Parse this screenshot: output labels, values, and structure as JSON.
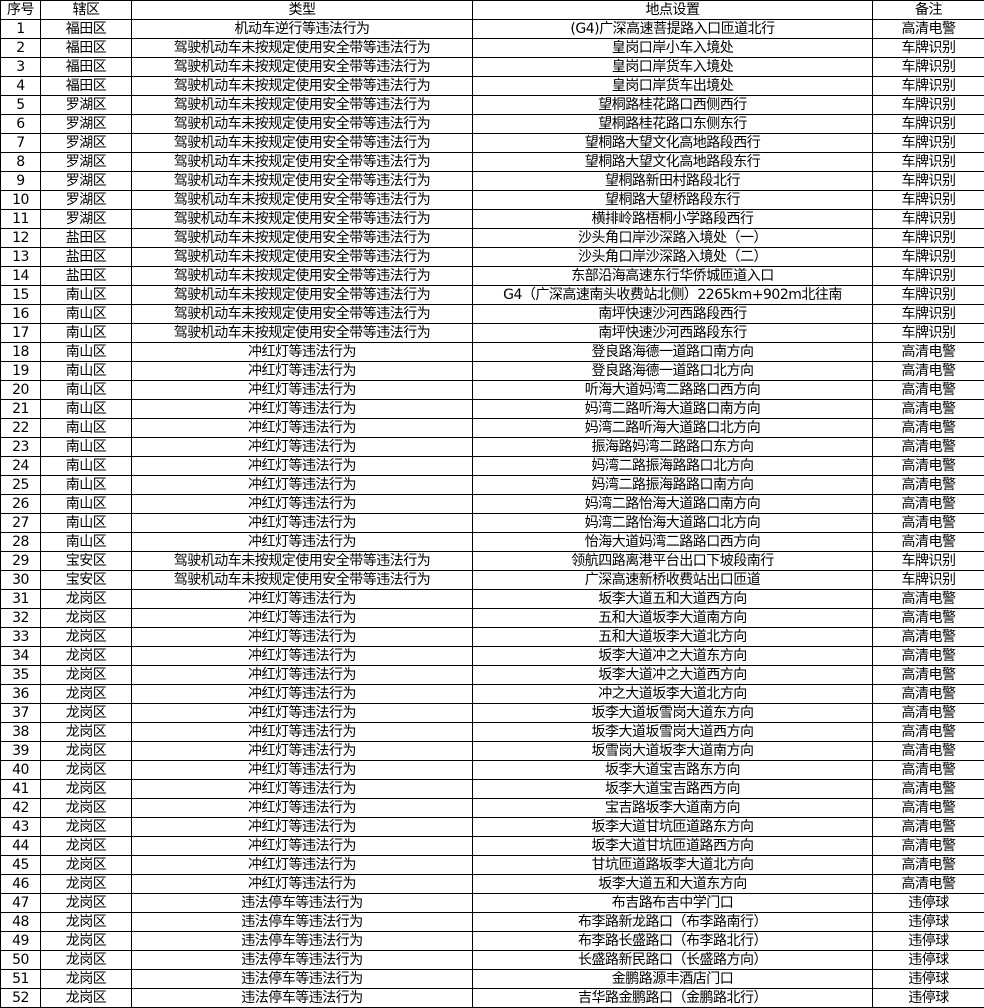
{
  "headers": [
    "序号",
    "辖区",
    "类型",
    "地点设置",
    "备注"
  ],
  "rows": [
    [
      "1",
      "福田区",
      "机动车逆行等违法行为",
      "(G4)广深高速菩提路入口匝道北行",
      "高清电警"
    ],
    [
      "2",
      "福田区",
      "驾驶机动车未按规定使用安全带等违法行为",
      "皇岗口岸小车入境处",
      "车牌识别"
    ],
    [
      "3",
      "福田区",
      "驾驶机动车未按规定使用安全带等违法行为",
      "皇岗口岸货车入境处",
      "车牌识别"
    ],
    [
      "4",
      "福田区",
      "驾驶机动车未按规定使用安全带等违法行为",
      "皇岗口岸货车出境处",
      "车牌识别"
    ],
    [
      "5",
      "罗湖区",
      "驾驶机动车未按规定使用安全带等违法行为",
      "望桐路桂花路口西侧西行",
      "车牌识别"
    ],
    [
      "6",
      "罗湖区",
      "驾驶机动车未按规定使用安全带等违法行为",
      "望桐路桂花路口东侧东行",
      "车牌识别"
    ],
    [
      "7",
      "罗湖区",
      "驾驶机动车未按规定使用安全带等违法行为",
      "望桐路大望文化高地路段西行",
      "车牌识别"
    ],
    [
      "8",
      "罗湖区",
      "驾驶机动车未按规定使用安全带等违法行为",
      "望桐路大望文化高地路段东行",
      "车牌识别"
    ],
    [
      "9",
      "罗湖区",
      "驾驶机动车未按规定使用安全带等违法行为",
      "望桐路新田村路段北行",
      "车牌识别"
    ],
    [
      "10",
      "罗湖区",
      "驾驶机动车未按规定使用安全带等违法行为",
      "望桐路大望桥路段东行",
      "车牌识别"
    ],
    [
      "11",
      "罗湖区",
      "驾驶机动车未按规定使用安全带等违法行为",
      "横排岭路梧桐小学路段西行",
      "车牌识别"
    ],
    [
      "12",
      "盐田区",
      "驾驶机动车未按规定使用安全带等违法行为",
      "沙头角口岸沙深路入境处（一）",
      "车牌识别"
    ],
    [
      "13",
      "盐田区",
      "驾驶机动车未按规定使用安全带等违法行为",
      "沙头角口岸沙深路入境处（二）",
      "车牌识别"
    ],
    [
      "14",
      "盐田区",
      "驾驶机动车未按规定使用安全带等违法行为",
      "东部沿海高速东行华侨城匝道入口",
      "车牌识别"
    ],
    [
      "15",
      "南山区",
      "驾驶机动车未按规定使用安全带等违法行为",
      "G4（广深高速南头收费站北侧）2265km+902m北往南",
      "车牌识别"
    ],
    [
      "16",
      "南山区",
      "驾驶机动车未按规定使用安全带等违法行为",
      "南坪快速沙河西路段西行",
      "车牌识别"
    ],
    [
      "17",
      "南山区",
      "驾驶机动车未按规定使用安全带等违法行为",
      "南坪快速沙河西路段东行",
      "车牌识别"
    ],
    [
      "18",
      "南山区",
      "冲红灯等违法行为",
      "登良路海德一道路口南方向",
      "高清电警"
    ],
    [
      "19",
      "南山区",
      "冲红灯等违法行为",
      "登良路海德一道路口北方向",
      "高清电警"
    ],
    [
      "20",
      "南山区",
      "冲红灯等违法行为",
      "听海大道妈湾二路路口西方向",
      "高清电警"
    ],
    [
      "21",
      "南山区",
      "冲红灯等违法行为",
      "妈湾二路听海大道路口南方向",
      "高清电警"
    ],
    [
      "22",
      "南山区",
      "冲红灯等违法行为",
      "妈湾二路听海大道路口北方向",
      "高清电警"
    ],
    [
      "23",
      "南山区",
      "冲红灯等违法行为",
      "振海路妈湾二路路口东方向",
      "高清电警"
    ],
    [
      "24",
      "南山区",
      "冲红灯等违法行为",
      "妈湾二路振海路路口北方向",
      "高清电警"
    ],
    [
      "25",
      "南山区",
      "冲红灯等违法行为",
      "妈湾二路振海路路口南方向",
      "高清电警"
    ],
    [
      "26",
      "南山区",
      "冲红灯等违法行为",
      "妈湾二路怡海大道路口南方向",
      "高清电警"
    ],
    [
      "27",
      "南山区",
      "冲红灯等违法行为",
      "妈湾二路怡海大道路口北方向",
      "高清电警"
    ],
    [
      "28",
      "南山区",
      "冲红灯等违法行为",
      "怡海大道妈湾二路路口西方向",
      "高清电警"
    ],
    [
      "29",
      "宝安区",
      "驾驶机动车未按规定使用安全带等违法行为",
      "领航四路离港平台出口下坡段南行",
      "车牌识别"
    ],
    [
      "30",
      "宝安区",
      "驾驶机动车未按规定使用安全带等违法行为",
      "广深高速新桥收费站出口匝道",
      "车牌识别"
    ],
    [
      "31",
      "龙岗区",
      "冲红灯等违法行为",
      "坂李大道五和大道西方向",
      "高清电警"
    ],
    [
      "32",
      "龙岗区",
      "冲红灯等违法行为",
      "五和大道坂李大道南方向",
      "高清电警"
    ],
    [
      "33",
      "龙岗区",
      "冲红灯等违法行为",
      "五和大道坂李大道北方向",
      "高清电警"
    ],
    [
      "34",
      "龙岗区",
      "冲红灯等违法行为",
      "坂李大道冲之大道东方向",
      "高清电警"
    ],
    [
      "35",
      "龙岗区",
      "冲红灯等违法行为",
      "坂李大道冲之大道西方向",
      "高清电警"
    ],
    [
      "36",
      "龙岗区",
      "冲红灯等违法行为",
      "冲之大道坂李大道北方向",
      "高清电警"
    ],
    [
      "37",
      "龙岗区",
      "冲红灯等违法行为",
      "坂李大道坂雪岗大道东方向",
      "高清电警"
    ],
    [
      "38",
      "龙岗区",
      "冲红灯等违法行为",
      "坂李大道坂雪岗大道西方向",
      "高清电警"
    ],
    [
      "39",
      "龙岗区",
      "冲红灯等违法行为",
      "坂雪岗大道坂李大道南方向",
      "高清电警"
    ],
    [
      "40",
      "龙岗区",
      "冲红灯等违法行为",
      "坂李大道宝吉路东方向",
      "高清电警"
    ],
    [
      "41",
      "龙岗区",
      "冲红灯等违法行为",
      "坂李大道宝吉路西方向",
      "高清电警"
    ],
    [
      "42",
      "龙岗区",
      "冲红灯等违法行为",
      "宝吉路坂李大道南方向",
      "高清电警"
    ],
    [
      "43",
      "龙岗区",
      "冲红灯等违法行为",
      "坂李大道甘坑匝道路东方向",
      "高清电警"
    ],
    [
      "44",
      "龙岗区",
      "冲红灯等违法行为",
      "坂李大道甘坑匝道路西方向",
      "高清电警"
    ],
    [
      "45",
      "龙岗区",
      "冲红灯等违法行为",
      "甘坑匝道路坂李大道北方向",
      "高清电警"
    ],
    [
      "46",
      "龙岗区",
      "冲红灯等违法行为",
      "坂李大道五和大道东方向",
      "高清电警"
    ],
    [
      "47",
      "龙岗区",
      "违法停车等违法行为",
      "布吉路布吉中学门口",
      "违停球"
    ],
    [
      "48",
      "龙岗区",
      "违法停车等违法行为",
      "布李路新龙路口（布李路南行）",
      "违停球"
    ],
    [
      "49",
      "龙岗区",
      "违法停车等违法行为",
      "布李路长盛路口（布李路北行）",
      "违停球"
    ],
    [
      "50",
      "龙岗区",
      "违法停车等违法行为",
      "长盛路新民路口（长盛路方向）",
      "违停球"
    ],
    [
      "51",
      "龙岗区",
      "违法停车等违法行为",
      "金鹏路源丰酒店门口",
      "违停球"
    ],
    [
      "52",
      "龙岗区",
      "违法停车等违法行为",
      "吉华路金鹏路口（金鹏路北行）",
      "违停球"
    ]
  ]
}
